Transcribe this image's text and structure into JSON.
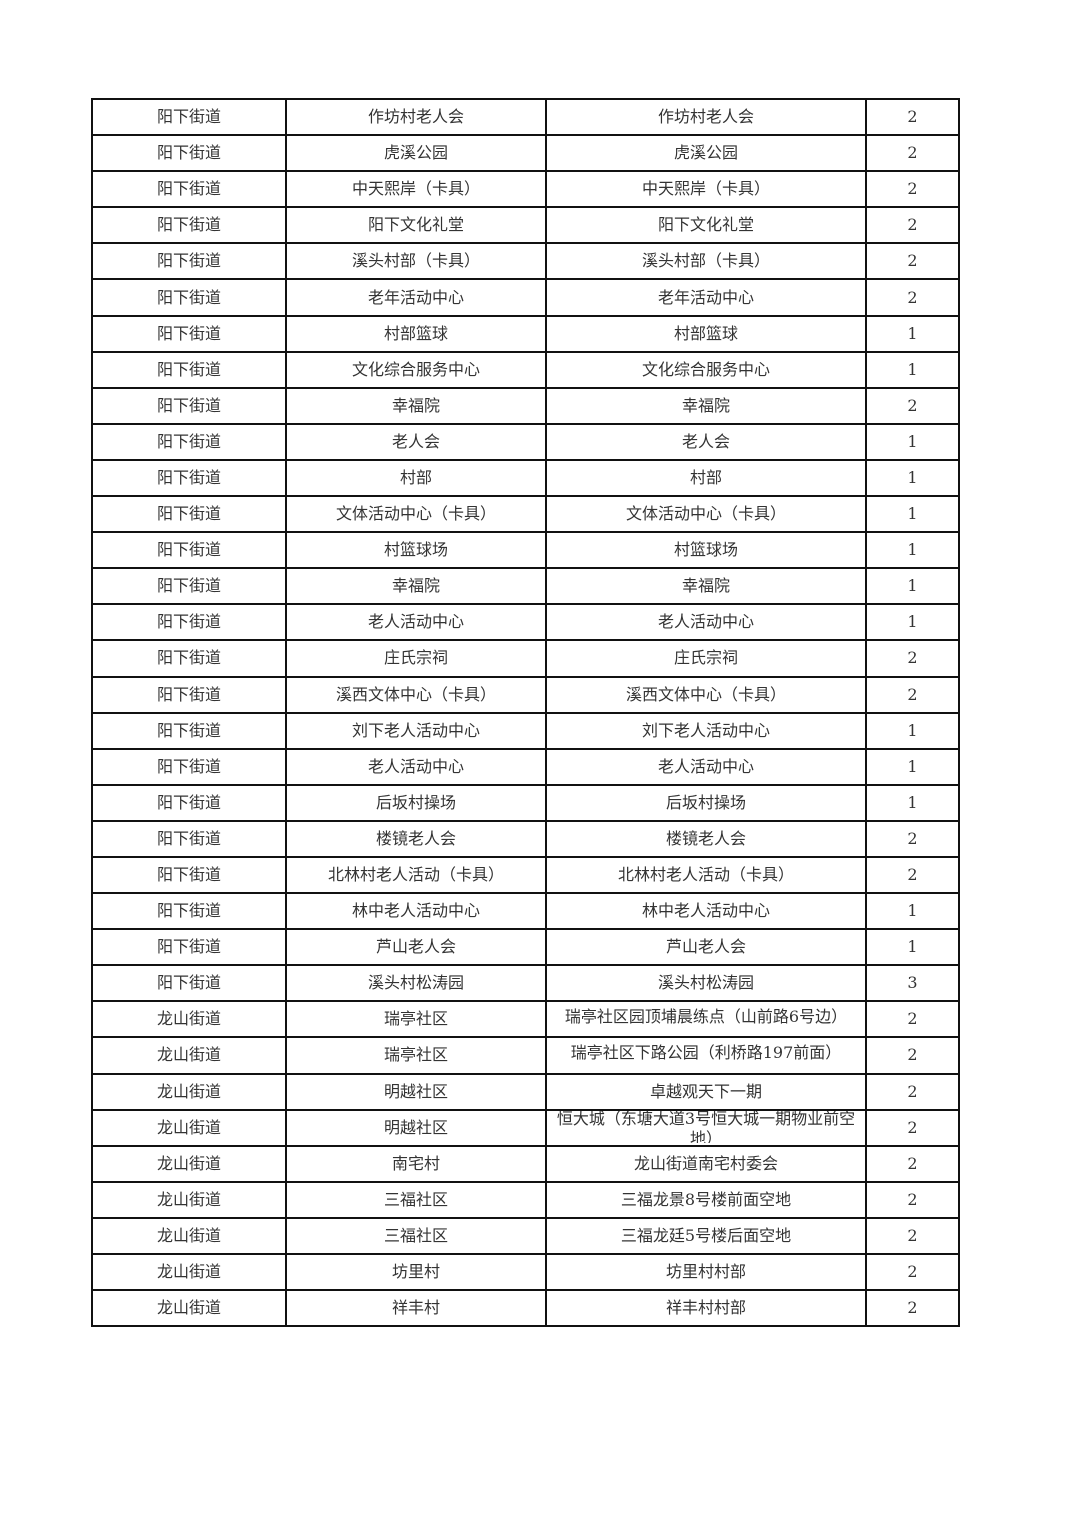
{
  "table": {
    "rows": [
      [
        "阳下街道",
        "作坊村老人会",
        "作坊村老人会",
        "2"
      ],
      [
        "阳下街道",
        "虎溪公园",
        "虎溪公园",
        "2"
      ],
      [
        "阳下街道",
        "中天熙岸（卡具）",
        "中天熙岸（卡具）",
        "2"
      ],
      [
        "阳下街道",
        "阳下文化礼堂",
        "阳下文化礼堂",
        "2"
      ],
      [
        "阳下街道",
        "溪头村部（卡具）",
        "溪头村部（卡具）",
        "2"
      ],
      [
        "阳下街道",
        "老年活动中心",
        "老年活动中心",
        "2"
      ],
      [
        "阳下街道",
        "村部篮球",
        "村部篮球",
        "1"
      ],
      [
        "阳下街道",
        "文化综合服务中心",
        "文化综合服务中心",
        "1"
      ],
      [
        "阳下街道",
        "幸福院",
        "幸福院",
        "2"
      ],
      [
        "阳下街道",
        "老人会",
        "老人会",
        "1"
      ],
      [
        "阳下街道",
        "村部",
        "村部",
        "1"
      ],
      [
        "阳下街道",
        "文体活动中心（卡具）",
        "文体活动中心（卡具）",
        "1"
      ],
      [
        "阳下街道",
        "村篮球场",
        "村篮球场",
        "1"
      ],
      [
        "阳下街道",
        "幸福院",
        "幸福院",
        "1"
      ],
      [
        "阳下街道",
        "老人活动中心",
        "老人活动中心",
        "1"
      ],
      [
        "阳下街道",
        "庄氏宗祠",
        "庄氏宗祠",
        "2"
      ],
      [
        "阳下街道",
        "溪西文体中心（卡具）",
        "溪西文体中心（卡具）",
        "2"
      ],
      [
        "阳下街道",
        "刘下老人活动中心",
        "刘下老人活动中心",
        "1"
      ],
      [
        "阳下街道",
        "老人活动中心",
        "老人活动中心",
        "1"
      ],
      [
        "阳下街道",
        "后坂村操场",
        "后坂村操场",
        "1"
      ],
      [
        "阳下街道",
        "楼镜老人会",
        "楼镜老人会",
        "2"
      ],
      [
        "阳下街道",
        "北林村老人活动（卡具）",
        "北林村老人活动（卡具）",
        "2"
      ],
      [
        "阳下街道",
        "林中老人活动中心",
        "林中老人活动中心",
        "1"
      ],
      [
        "阳下街道",
        "芦山老人会",
        "芦山老人会",
        "1"
      ],
      [
        "阳下街道",
        "溪头村松涛园",
        "溪头村松涛园",
        "3"
      ],
      [
        "龙山街道",
        "瑞亭社区",
        "瑞亭社区园顶埔晨练点（山前路6号边）",
        "2"
      ],
      [
        "龙山街道",
        "瑞亭社区",
        "瑞亭社区下路公园（利桥路197前面）",
        "2"
      ],
      [
        "龙山街道",
        "明越社区",
        "卓越观天下一期",
        "2"
      ],
      [
        "龙山街道",
        "明越社区",
        "恒大城（东塘大道3号恒大城一期物业前空地）",
        "2"
      ],
      [
        "龙山街道",
        "南宅村",
        "龙山街道南宅村委会",
        "2"
      ],
      [
        "龙山街道",
        "三福社区",
        "三福龙景8号楼前面空地",
        "2"
      ],
      [
        "龙山街道",
        "三福社区",
        "三福龙廷5号楼后面空地",
        "2"
      ],
      [
        "龙山街道",
        "坊里村",
        "坊里村村部",
        "2"
      ],
      [
        "龙山街道",
        "祥丰村",
        "祥丰村村部",
        "2"
      ]
    ]
  }
}
